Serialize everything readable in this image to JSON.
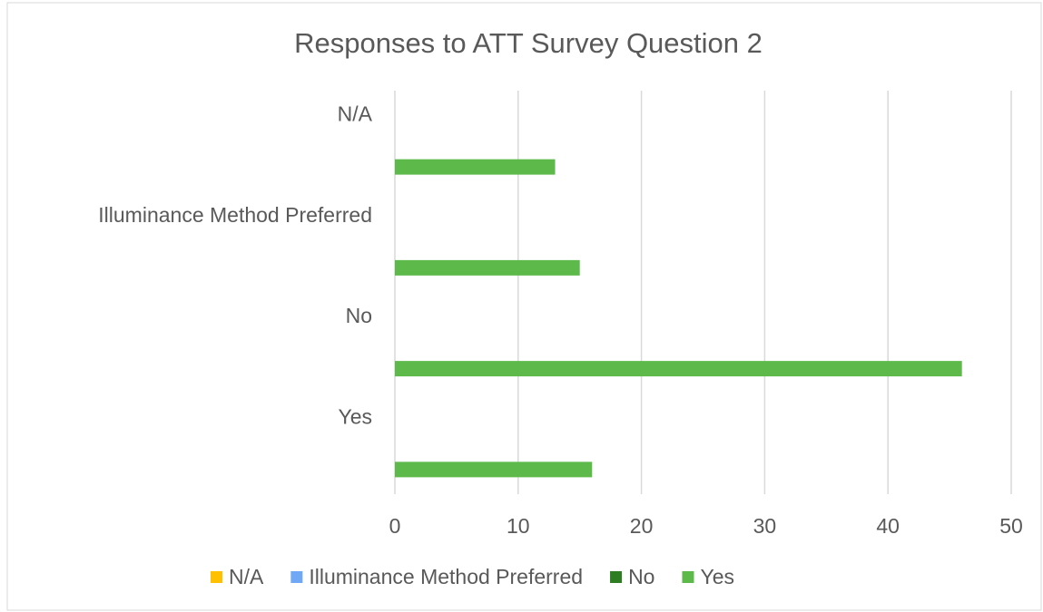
{
  "chart_data": {
    "type": "bar",
    "orientation": "horizontal",
    "title": "Responses to ATT Survey  Question 2",
    "categories": [
      "Yes",
      "No",
      "Illuminance Method Preferred",
      "N/A"
    ],
    "series": [
      {
        "name": "N/A",
        "color": "#ffc000",
        "values": [
          null,
          null,
          null,
          null
        ]
      },
      {
        "name": "Illuminance Method Preferred",
        "color": "#70a8f5",
        "values": [
          null,
          null,
          null,
          null
        ]
      },
      {
        "name": "No",
        "color": "#2e7d22",
        "values": [
          null,
          null,
          null,
          null
        ]
      },
      {
        "name": "Yes",
        "color": "#5cb94a",
        "values": [
          16,
          46,
          15,
          13
        ]
      }
    ],
    "xlim": [
      0,
      50
    ],
    "xticks": [
      0,
      10,
      20,
      30,
      40,
      50
    ],
    "grid": true,
    "legend": "bottom"
  }
}
